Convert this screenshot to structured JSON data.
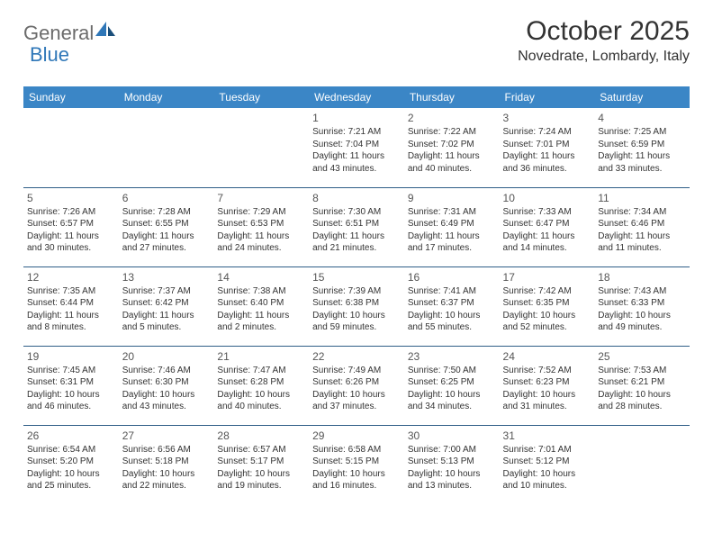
{
  "logo": {
    "general": "General",
    "blue": "Blue"
  },
  "title": "October 2025",
  "location": "Novedrate, Lombardy, Italy",
  "colors": {
    "header_bg": "#3b86c6",
    "header_text": "#ffffff",
    "cell_border": "#2f5e87",
    "body_text": "#333333",
    "logo_gray": "#6b6b6b",
    "logo_blue": "#2f77b8"
  },
  "weekdays": [
    "Sunday",
    "Monday",
    "Tuesday",
    "Wednesday",
    "Thursday",
    "Friday",
    "Saturday"
  ],
  "weeks": [
    [
      null,
      null,
      null,
      {
        "n": "1",
        "sr": "Sunrise: 7:21 AM",
        "ss": "Sunset: 7:04 PM",
        "d1": "Daylight: 11 hours",
        "d2": "and 43 minutes."
      },
      {
        "n": "2",
        "sr": "Sunrise: 7:22 AM",
        "ss": "Sunset: 7:02 PM",
        "d1": "Daylight: 11 hours",
        "d2": "and 40 minutes."
      },
      {
        "n": "3",
        "sr": "Sunrise: 7:24 AM",
        "ss": "Sunset: 7:01 PM",
        "d1": "Daylight: 11 hours",
        "d2": "and 36 minutes."
      },
      {
        "n": "4",
        "sr": "Sunrise: 7:25 AM",
        "ss": "Sunset: 6:59 PM",
        "d1": "Daylight: 11 hours",
        "d2": "and 33 minutes."
      }
    ],
    [
      {
        "n": "5",
        "sr": "Sunrise: 7:26 AM",
        "ss": "Sunset: 6:57 PM",
        "d1": "Daylight: 11 hours",
        "d2": "and 30 minutes."
      },
      {
        "n": "6",
        "sr": "Sunrise: 7:28 AM",
        "ss": "Sunset: 6:55 PM",
        "d1": "Daylight: 11 hours",
        "d2": "and 27 minutes."
      },
      {
        "n": "7",
        "sr": "Sunrise: 7:29 AM",
        "ss": "Sunset: 6:53 PM",
        "d1": "Daylight: 11 hours",
        "d2": "and 24 minutes."
      },
      {
        "n": "8",
        "sr": "Sunrise: 7:30 AM",
        "ss": "Sunset: 6:51 PM",
        "d1": "Daylight: 11 hours",
        "d2": "and 21 minutes."
      },
      {
        "n": "9",
        "sr": "Sunrise: 7:31 AM",
        "ss": "Sunset: 6:49 PM",
        "d1": "Daylight: 11 hours",
        "d2": "and 17 minutes."
      },
      {
        "n": "10",
        "sr": "Sunrise: 7:33 AM",
        "ss": "Sunset: 6:47 PM",
        "d1": "Daylight: 11 hours",
        "d2": "and 14 minutes."
      },
      {
        "n": "11",
        "sr": "Sunrise: 7:34 AM",
        "ss": "Sunset: 6:46 PM",
        "d1": "Daylight: 11 hours",
        "d2": "and 11 minutes."
      }
    ],
    [
      {
        "n": "12",
        "sr": "Sunrise: 7:35 AM",
        "ss": "Sunset: 6:44 PM",
        "d1": "Daylight: 11 hours",
        "d2": "and 8 minutes."
      },
      {
        "n": "13",
        "sr": "Sunrise: 7:37 AM",
        "ss": "Sunset: 6:42 PM",
        "d1": "Daylight: 11 hours",
        "d2": "and 5 minutes."
      },
      {
        "n": "14",
        "sr": "Sunrise: 7:38 AM",
        "ss": "Sunset: 6:40 PM",
        "d1": "Daylight: 11 hours",
        "d2": "and 2 minutes."
      },
      {
        "n": "15",
        "sr": "Sunrise: 7:39 AM",
        "ss": "Sunset: 6:38 PM",
        "d1": "Daylight: 10 hours",
        "d2": "and 59 minutes."
      },
      {
        "n": "16",
        "sr": "Sunrise: 7:41 AM",
        "ss": "Sunset: 6:37 PM",
        "d1": "Daylight: 10 hours",
        "d2": "and 55 minutes."
      },
      {
        "n": "17",
        "sr": "Sunrise: 7:42 AM",
        "ss": "Sunset: 6:35 PM",
        "d1": "Daylight: 10 hours",
        "d2": "and 52 minutes."
      },
      {
        "n": "18",
        "sr": "Sunrise: 7:43 AM",
        "ss": "Sunset: 6:33 PM",
        "d1": "Daylight: 10 hours",
        "d2": "and 49 minutes."
      }
    ],
    [
      {
        "n": "19",
        "sr": "Sunrise: 7:45 AM",
        "ss": "Sunset: 6:31 PM",
        "d1": "Daylight: 10 hours",
        "d2": "and 46 minutes."
      },
      {
        "n": "20",
        "sr": "Sunrise: 7:46 AM",
        "ss": "Sunset: 6:30 PM",
        "d1": "Daylight: 10 hours",
        "d2": "and 43 minutes."
      },
      {
        "n": "21",
        "sr": "Sunrise: 7:47 AM",
        "ss": "Sunset: 6:28 PM",
        "d1": "Daylight: 10 hours",
        "d2": "and 40 minutes."
      },
      {
        "n": "22",
        "sr": "Sunrise: 7:49 AM",
        "ss": "Sunset: 6:26 PM",
        "d1": "Daylight: 10 hours",
        "d2": "and 37 minutes."
      },
      {
        "n": "23",
        "sr": "Sunrise: 7:50 AM",
        "ss": "Sunset: 6:25 PM",
        "d1": "Daylight: 10 hours",
        "d2": "and 34 minutes."
      },
      {
        "n": "24",
        "sr": "Sunrise: 7:52 AM",
        "ss": "Sunset: 6:23 PM",
        "d1": "Daylight: 10 hours",
        "d2": "and 31 minutes."
      },
      {
        "n": "25",
        "sr": "Sunrise: 7:53 AM",
        "ss": "Sunset: 6:21 PM",
        "d1": "Daylight: 10 hours",
        "d2": "and 28 minutes."
      }
    ],
    [
      {
        "n": "26",
        "sr": "Sunrise: 6:54 AM",
        "ss": "Sunset: 5:20 PM",
        "d1": "Daylight: 10 hours",
        "d2": "and 25 minutes."
      },
      {
        "n": "27",
        "sr": "Sunrise: 6:56 AM",
        "ss": "Sunset: 5:18 PM",
        "d1": "Daylight: 10 hours",
        "d2": "and 22 minutes."
      },
      {
        "n": "28",
        "sr": "Sunrise: 6:57 AM",
        "ss": "Sunset: 5:17 PM",
        "d1": "Daylight: 10 hours",
        "d2": "and 19 minutes."
      },
      {
        "n": "29",
        "sr": "Sunrise: 6:58 AM",
        "ss": "Sunset: 5:15 PM",
        "d1": "Daylight: 10 hours",
        "d2": "and 16 minutes."
      },
      {
        "n": "30",
        "sr": "Sunrise: 7:00 AM",
        "ss": "Sunset: 5:13 PM",
        "d1": "Daylight: 10 hours",
        "d2": "and 13 minutes."
      },
      {
        "n": "31",
        "sr": "Sunrise: 7:01 AM",
        "ss": "Sunset: 5:12 PM",
        "d1": "Daylight: 10 hours",
        "d2": "and 10 minutes."
      },
      null
    ]
  ]
}
